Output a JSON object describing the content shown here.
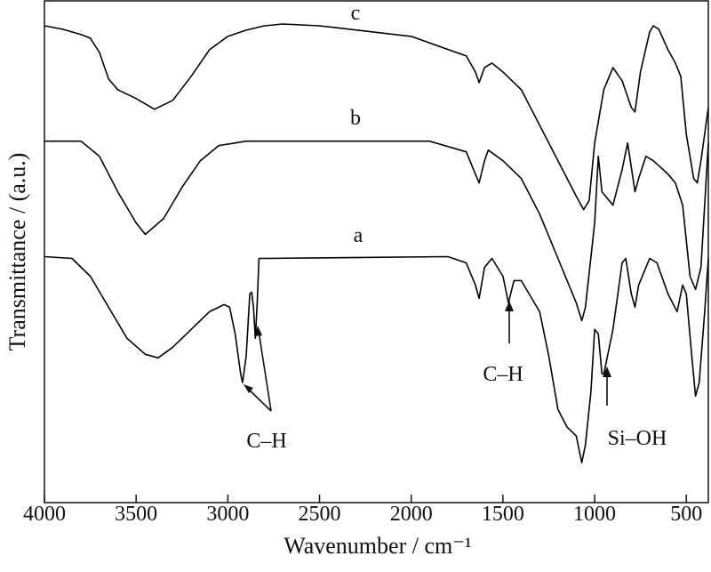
{
  "chart_data": {
    "type": "line",
    "xlabel": "Wavenumber / cm⁻¹",
    "ylabel": "Transmittance / (a.u.)",
    "xlim": [
      4000,
      380
    ],
    "xticks": [
      4000,
      3500,
      3000,
      2500,
      2000,
      1500,
      1000,
      500
    ],
    "ylim": [
      0,
      565
    ],
    "annotations": [
      "C–H",
      "C–H",
      "Si–OH"
    ],
    "series": [
      {
        "name": "c",
        "color": "#000000",
        "x": [
          4000,
          3900,
          3800,
          3750,
          3700,
          3650,
          3600,
          3500,
          3400,
          3300,
          3200,
          3100,
          3000,
          2900,
          2800,
          2700,
          2500,
          2000,
          1700,
          1650,
          1630,
          1600,
          1560,
          1500,
          1400,
          1300,
          1200,
          1150,
          1100,
          1060,
          1030,
          1000,
          950,
          900,
          850,
          800,
          780,
          750,
          700,
          680,
          650,
          600,
          560,
          530,
          500,
          460,
          440,
          420,
          380
        ],
        "values": [
          537,
          533,
          527,
          523,
          507,
          477,
          465,
          455,
          443,
          453,
          480,
          510,
          525,
          532,
          537,
          539,
          537,
          525,
          503,
          485,
          473,
          490,
          495,
          485,
          465,
          425,
          385,
          365,
          345,
          330,
          340,
          405,
          465,
          490,
          475,
          445,
          440,
          485,
          530,
          537,
          533,
          510,
          495,
          480,
          415,
          365,
          360,
          385,
          445
        ]
      },
      {
        "name": "b",
        "color": "#000000",
        "x": [
          4000,
          3800,
          3700,
          3600,
          3500,
          3450,
          3350,
          3250,
          3150,
          3050,
          2900,
          1900,
          1700,
          1650,
          1630,
          1600,
          1580,
          1500,
          1400,
          1300,
          1200,
          1100,
          1070,
          1050,
          1000,
          980,
          960,
          900,
          850,
          820,
          780,
          760,
          720,
          680,
          600,
          560,
          520,
          480,
          450,
          420,
          380
        ],
        "values": [
          407,
          407,
          390,
          350,
          315,
          302,
          320,
          355,
          385,
          402,
          407,
          407,
          395,
          370,
          360,
          385,
          397,
          385,
          365,
          325,
          275,
          225,
          205,
          220,
          315,
          390,
          350,
          335,
          375,
          405,
          350,
          365,
          390,
          385,
          370,
          360,
          335,
          255,
          240,
          265,
          405
        ]
      },
      {
        "name": "a",
        "color": "#000000",
        "x": [
          4000,
          3850,
          3750,
          3650,
          3550,
          3450,
          3380,
          3300,
          3200,
          3100,
          3020,
          2990,
          2960,
          2930,
          2920,
          2900,
          2880,
          2870,
          2860,
          2850,
          2840,
          2830,
          2800,
          1800,
          1700,
          1650,
          1630,
          1600,
          1560,
          1500,
          1470,
          1440,
          1400,
          1300,
          1250,
          1200,
          1150,
          1100,
          1070,
          1050,
          1020,
          1000,
          980,
          960,
          950,
          900,
          850,
          830,
          800,
          780,
          760,
          700,
          660,
          600,
          550,
          520,
          500,
          470,
          450,
          430,
          400,
          380
        ],
        "values": [
          277,
          275,
          255,
          220,
          185,
          167,
          163,
          175,
          195,
          215,
          223,
          220,
          190,
          145,
          135,
          165,
          235,
          237,
          220,
          185,
          225,
          275,
          275,
          277,
          270,
          245,
          230,
          265,
          275,
          255,
          225,
          250,
          250,
          215,
          165,
          105,
          85,
          75,
          45,
          65,
          125,
          195,
          190,
          145,
          145,
          195,
          270,
          275,
          235,
          220,
          245,
          275,
          270,
          235,
          215,
          245,
          235,
          165,
          120,
          135,
          215,
          275
        ]
      }
    ]
  }
}
